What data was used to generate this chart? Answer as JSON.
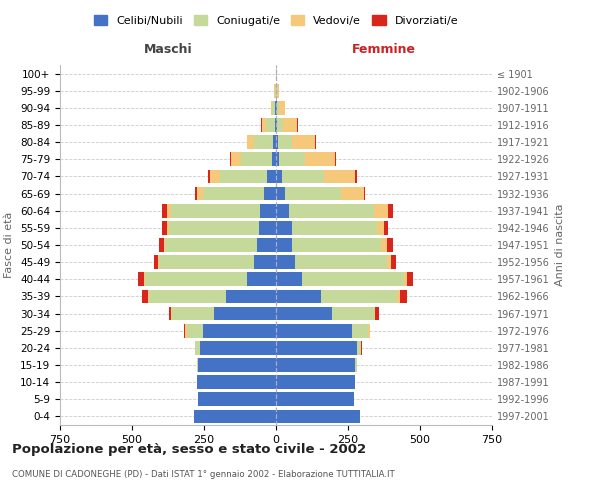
{
  "age_groups": [
    "0-4",
    "5-9",
    "10-14",
    "15-19",
    "20-24",
    "25-29",
    "30-34",
    "35-39",
    "40-44",
    "45-49",
    "50-54",
    "55-59",
    "60-64",
    "65-69",
    "70-74",
    "75-79",
    "80-84",
    "85-89",
    "90-94",
    "95-99",
    "100+"
  ],
  "birth_years": [
    "1997-2001",
    "1992-1996",
    "1987-1991",
    "1982-1986",
    "1977-1981",
    "1972-1976",
    "1967-1971",
    "1962-1966",
    "1957-1961",
    "1952-1956",
    "1947-1951",
    "1942-1946",
    "1937-1941",
    "1932-1936",
    "1927-1931",
    "1922-1926",
    "1917-1921",
    "1912-1916",
    "1907-1911",
    "1902-1906",
    "≤ 1901"
  ],
  "maschi": {
    "celibi": [
      285,
      270,
      275,
      270,
      265,
      255,
      215,
      175,
      100,
      75,
      65,
      60,
      55,
      40,
      30,
      15,
      10,
      5,
      3,
      1,
      0
    ],
    "coniugati": [
      0,
      0,
      0,
      5,
      15,
      55,
      145,
      265,
      355,
      330,
      320,
      310,
      310,
      215,
      165,
      105,
      65,
      30,
      10,
      4,
      1
    ],
    "vedovi": [
      0,
      0,
      0,
      0,
      0,
      5,
      3,
      5,
      5,
      5,
      5,
      10,
      15,
      20,
      35,
      35,
      25,
      15,
      5,
      2,
      0
    ],
    "divorziati": [
      0,
      0,
      0,
      0,
      2,
      3,
      10,
      20,
      20,
      15,
      15,
      15,
      15,
      5,
      5,
      3,
      2,
      1,
      0,
      0,
      0
    ]
  },
  "femmine": {
    "nubili": [
      290,
      270,
      275,
      275,
      280,
      265,
      195,
      155,
      90,
      65,
      55,
      55,
      45,
      30,
      20,
      10,
      7,
      4,
      2,
      1,
      0
    ],
    "coniugate": [
      0,
      0,
      0,
      5,
      15,
      55,
      145,
      265,
      355,
      320,
      310,
      295,
      295,
      195,
      145,
      90,
      50,
      20,
      8,
      3,
      1
    ],
    "vedove": [
      0,
      0,
      0,
      0,
      0,
      5,
      5,
      10,
      10,
      15,
      20,
      25,
      50,
      80,
      110,
      105,
      80,
      50,
      20,
      5,
      1
    ],
    "divorziate": [
      0,
      0,
      0,
      0,
      2,
      3,
      12,
      25,
      20,
      15,
      20,
      15,
      15,
      5,
      5,
      3,
      2,
      1,
      0,
      0,
      0
    ]
  },
  "colors": {
    "celibi": "#4472c4",
    "coniugati": "#c5d99a",
    "vedovi": "#f5c87a",
    "divorziati": "#d9261c"
  },
  "title": "Popolazione per età, sesso e stato civile - 2002",
  "subtitle": "COMUNE DI CADONEGHE (PD) - Dati ISTAT 1° gennaio 2002 - Elaborazione TUTTITALIA.IT",
  "xlabel_left": "Maschi",
  "xlabel_right": "Femmine",
  "ylabel_left": "Fasce di età",
  "ylabel_right": "Anni di nascita",
  "xlim": 750,
  "legend_labels": [
    "Celibi/Nubili",
    "Coniugati/e",
    "Vedovi/e",
    "Divorziati/e"
  ],
  "bg_color": "#ffffff",
  "grid_color": "#cccccc"
}
